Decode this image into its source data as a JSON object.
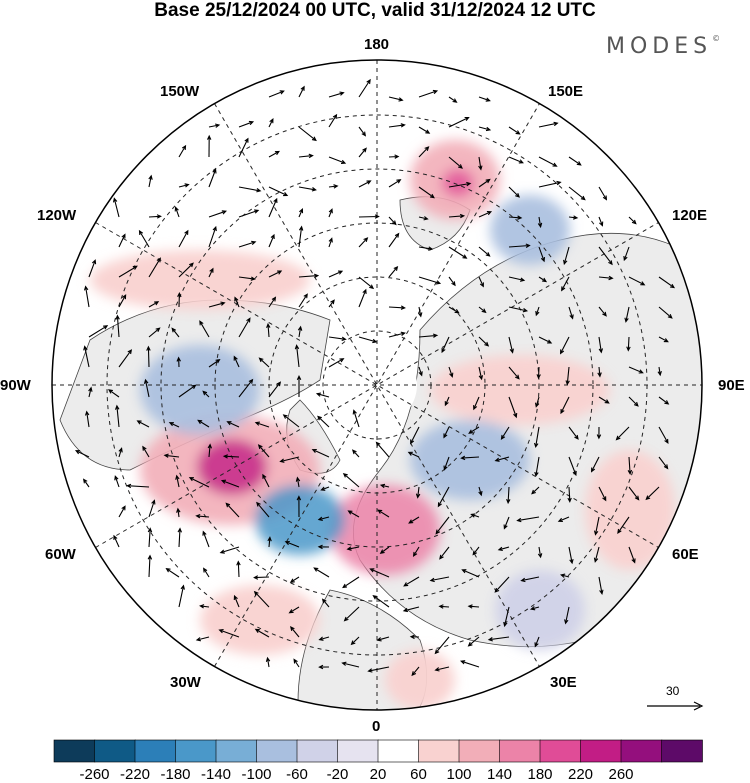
{
  "title": "Base 25/12/2024 00 UTC, valid 31/12/2024 12 UTC",
  "brand": "MODES",
  "brand_mark": "©",
  "longitude_labels": {
    "top": "180",
    "top_left": "150W",
    "top_right": "150E",
    "upper_left": "120W",
    "upper_right": "120E",
    "left": "90W",
    "right": "90E",
    "lower_left": "60W",
    "lower_right": "60E",
    "bottom_left": "30W",
    "bottom_right": "30E",
    "bottom": "0"
  },
  "reference_vector": {
    "label": "30"
  },
  "colorbar": {
    "labels": [
      "-260",
      "-220",
      "-180",
      "-140",
      "-100",
      "-60",
      "-20",
      "20",
      "60",
      "100",
      "140",
      "180",
      "220",
      "260"
    ],
    "colors": [
      "#0d3b5a",
      "#0f5a86",
      "#2c7fb8",
      "#4a98c9",
      "#78aed6",
      "#a9bfdf",
      "#d0d2e8",
      "#e6e3f0",
      "#ffffff",
      "#f9d2d0",
      "#f2aeb8",
      "#ec83a8",
      "#e04c97",
      "#c21d85",
      "#940f7d",
      "#5d0a68"
    ]
  },
  "anomaly_colors": {
    "positive_weak": "#f9d2d0",
    "positive_mid": "#f2aeb8",
    "positive_strong": "#e04c97",
    "positive_extreme": "#c21d85",
    "negative_weak": "#d0d2e8",
    "negative_mid": "#a9bfdf",
    "negative_strong": "#4a98c9",
    "land": "#ececec"
  }
}
